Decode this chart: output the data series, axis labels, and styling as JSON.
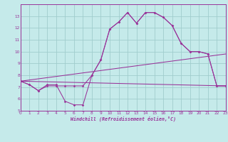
{
  "xlabel": "Windchill (Refroidissement éolien,°C)",
  "xlim": [
    0,
    23
  ],
  "ylim": [
    5,
    14
  ],
  "xticks": [
    0,
    1,
    2,
    3,
    4,
    5,
    6,
    7,
    8,
    9,
    10,
    11,
    12,
    13,
    14,
    15,
    16,
    17,
    18,
    19,
    20,
    21,
    22,
    23
  ],
  "yticks": [
    5,
    6,
    7,
    8,
    9,
    10,
    11,
    12,
    13
  ],
  "bg_color": "#c5eaea",
  "grid_color": "#a0cdcd",
  "line_color": "#993399",
  "line1_x": [
    0,
    1,
    2,
    3,
    4,
    5,
    6,
    7,
    8,
    9,
    10,
    11,
    12,
    13,
    14,
    15,
    16,
    17,
    18,
    19,
    20,
    21,
    22,
    23
  ],
  "line1_y": [
    7.5,
    7.2,
    6.7,
    7.1,
    7.1,
    7.1,
    7.1,
    7.1,
    8.0,
    9.3,
    11.9,
    12.5,
    13.3,
    12.4,
    13.3,
    13.3,
    12.9,
    12.2,
    10.7,
    10.0,
    10.0,
    9.8,
    7.1,
    7.1
  ],
  "line2_x": [
    0,
    1,
    2,
    3,
    4,
    5,
    6,
    7,
    8,
    9,
    10,
    11,
    12,
    13,
    14,
    15,
    16,
    17,
    18,
    19,
    20,
    21,
    22,
    23
  ],
  "line2_y": [
    7.5,
    7.2,
    6.7,
    7.2,
    7.2,
    5.8,
    5.5,
    5.5,
    8.0,
    9.3,
    11.9,
    12.5,
    13.3,
    12.4,
    13.3,
    13.3,
    12.9,
    12.2,
    10.7,
    10.0,
    10.0,
    9.8,
    7.1,
    7.1
  ],
  "line3_x": [
    0,
    23
  ],
  "line3_y": [
    7.5,
    7.1
  ],
  "line4_x": [
    0,
    23
  ],
  "line4_y": [
    7.5,
    9.8
  ]
}
